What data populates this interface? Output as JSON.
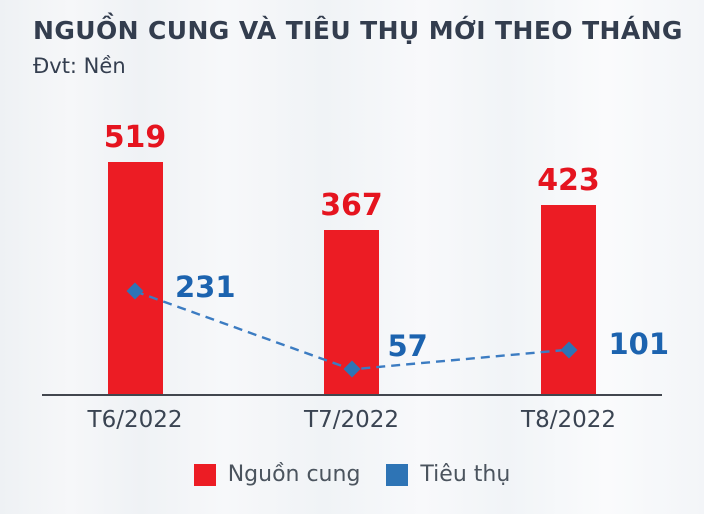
{
  "title": "NGUỒN CUNG VÀ TIÊU THỤ MỚI THEO THÁNG",
  "subtitle": "Đvt: Nền",
  "chart_data": {
    "type": "bar",
    "subtype": "bar-with-line-overlay",
    "categories": [
      "T6/2022",
      "T7/2022",
      "T8/2022"
    ],
    "series": [
      {
        "name": "Nguồn cung",
        "type": "bar",
        "color": "#ec1c24",
        "label_color": "#e5141f",
        "values": [
          519,
          367,
          423
        ]
      },
      {
        "name": "Tiêu thụ",
        "type": "line",
        "color": "#2e74b5",
        "line_color": "#3c7cc2",
        "line_style": "dashed",
        "marker": "diamond",
        "label_color": "#1c63af",
        "values": [
          231,
          57,
          101
        ]
      }
    ],
    "ylim": [
      0,
      560
    ],
    "grid": false,
    "y_axis_visible": false,
    "value_labels": true,
    "legend_position": "bottom",
    "xlabel": "",
    "ylabel": ""
  },
  "colors": {
    "title": "#333d4e",
    "axis_line": "#42464e",
    "category_label": "#3a4452",
    "legend_text": "#4b545e",
    "background": "#f3f5f7"
  }
}
